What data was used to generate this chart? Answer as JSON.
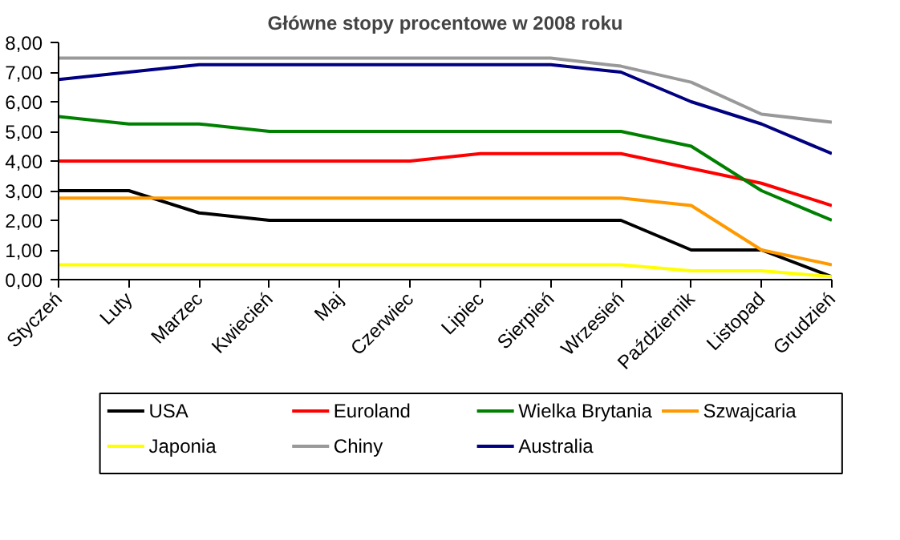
{
  "chart_data": {
    "type": "line",
    "title": "Główne stopy procentowe w 2008 roku",
    "categories": [
      "Styczeń",
      "Luty",
      "Marzec",
      "Kwiecień",
      "Maj",
      "Czerwiec",
      "Lipiec",
      "Sierpień",
      "Wrzesień",
      "Październik",
      "Listopad",
      "Grudzień"
    ],
    "series": [
      {
        "name": "USA",
        "color": "#000000",
        "values": [
          3,
          3,
          2.25,
          2,
          2,
          2,
          2,
          2,
          2,
          1,
          1,
          0.1
        ]
      },
      {
        "name": "Euroland",
        "color": "#ff0000",
        "values": [
          4,
          4,
          4,
          4,
          4,
          4,
          4.25,
          4.25,
          4.25,
          3.75,
          3.25,
          2.5
        ]
      },
      {
        "name": "Wielka Brytania",
        "color": "#008000",
        "values": [
          5.5,
          5.25,
          5.25,
          5,
          5,
          5,
          5,
          5,
          5,
          4.5,
          3,
          2
        ]
      },
      {
        "name": "Szwajcaria",
        "color": "#ff9900",
        "values": [
          2.75,
          2.75,
          2.75,
          2.75,
          2.75,
          2.75,
          2.75,
          2.75,
          2.75,
          2.5,
          1,
          0.5
        ]
      },
      {
        "name": "Japonia",
        "color": "#ffff00",
        "values": [
          0.5,
          0.5,
          0.5,
          0.5,
          0.5,
          0.5,
          0.5,
          0.5,
          0.5,
          0.3,
          0.3,
          0.1
        ]
      },
      {
        "name": "Chiny",
        "color": "#999999",
        "values": [
          7.47,
          7.47,
          7.47,
          7.47,
          7.47,
          7.47,
          7.47,
          7.47,
          7.2,
          6.66,
          5.58,
          5.31
        ]
      },
      {
        "name": "Australia",
        "color": "#000080",
        "values": [
          6.75,
          7,
          7.25,
          7.25,
          7.25,
          7.25,
          7.25,
          7.25,
          7,
          6,
          5.25,
          4.25
        ]
      }
    ],
    "ylim": [
      0,
      8
    ],
    "yticks": [
      {
        "value": 0,
        "label": "0,00"
      },
      {
        "value": 1,
        "label": "1,00"
      },
      {
        "value": 2,
        "label": "2,00"
      },
      {
        "value": 3,
        "label": "3,00"
      },
      {
        "value": 4,
        "label": "4,00"
      },
      {
        "value": 5,
        "label": "5,00"
      },
      {
        "value": 6,
        "label": "6,00"
      },
      {
        "value": 7,
        "label": "7,00"
      },
      {
        "value": 8,
        "label": "8,00"
      }
    ],
    "grid": false,
    "legend": "bottom",
    "marker": "none",
    "line_style": "solid"
  }
}
